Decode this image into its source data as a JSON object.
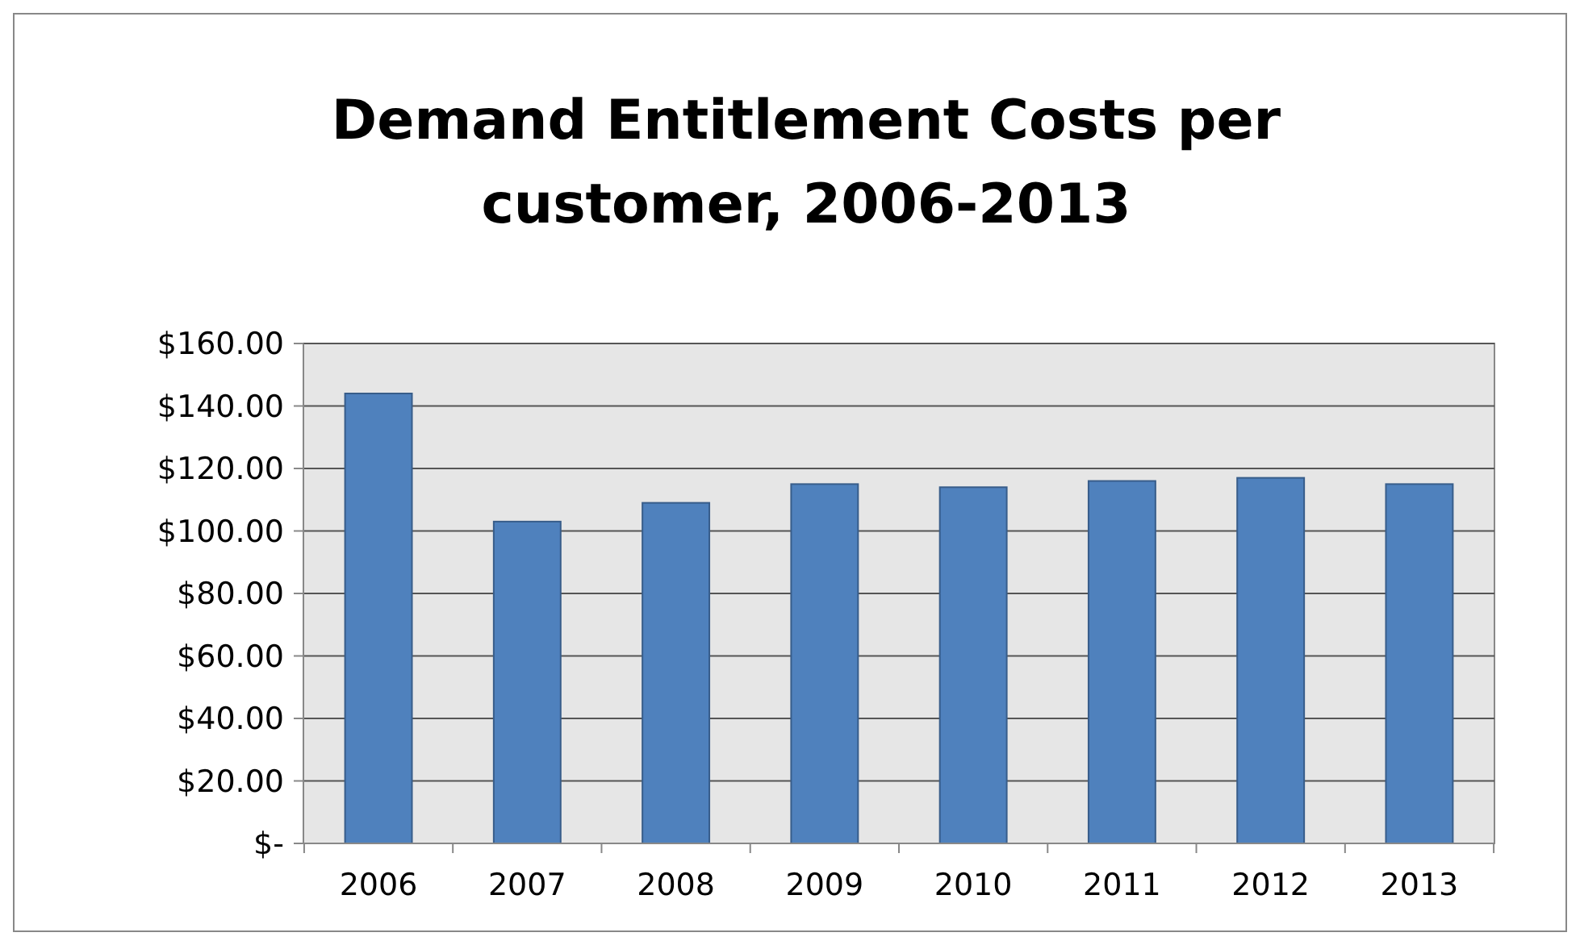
{
  "chart_data": {
    "type": "bar",
    "title": "Demand Entitlement Costs per customer, 2006-2013",
    "categories": [
      "2006",
      "2007",
      "2008",
      "2009",
      "2010",
      "2011",
      "2012",
      "2013"
    ],
    "values": [
      144,
      103,
      109,
      115,
      114,
      116,
      117,
      115
    ],
    "color": "#4f81bd",
    "ylim": [
      0,
      160
    ],
    "yticks": [
      {
        "value": 0,
        "label": "$-"
      },
      {
        "value": 20,
        "label": "$20.00"
      },
      {
        "value": 40,
        "label": "$40.00"
      },
      {
        "value": 60,
        "label": "$60.00"
      },
      {
        "value": 80,
        "label": "$80.00"
      },
      {
        "value": 100,
        "label": "$100.00"
      },
      {
        "value": 120,
        "label": "$120.00"
      },
      {
        "value": 140,
        "label": "$140.00"
      },
      {
        "value": 160,
        "label": "$160.00"
      }
    ],
    "grid": "y"
  }
}
